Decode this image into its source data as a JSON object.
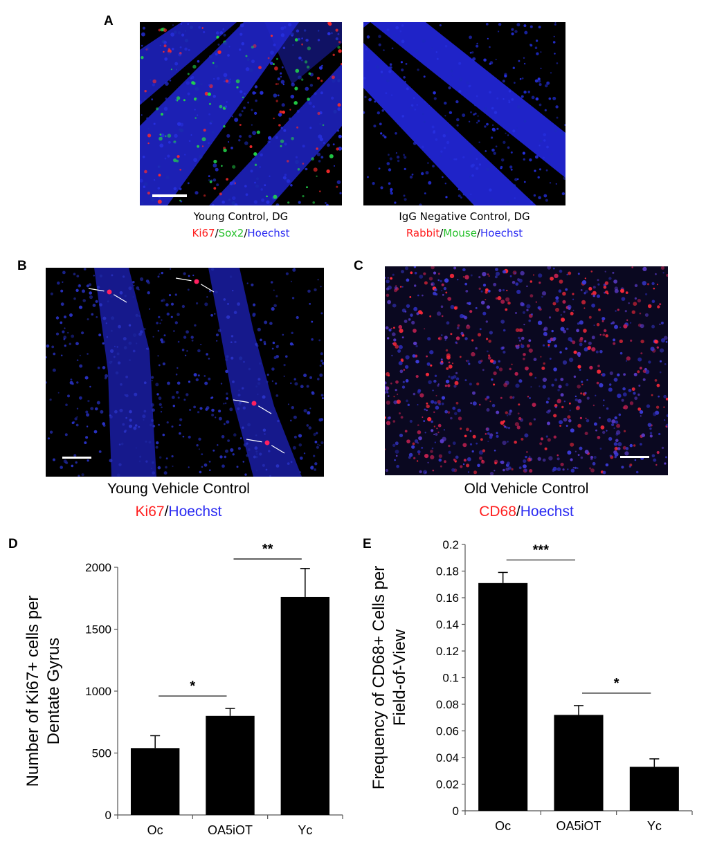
{
  "panels": {
    "A": {
      "letter": "A",
      "left_caption": "Young Control, DG",
      "left_stain": [
        "Ki67",
        "/",
        "Sox2",
        "/",
        "Hoechst"
      ],
      "right_caption": "IgG Negative Control, DG",
      "right_stain": [
        "Rabbit",
        "/",
        "Mouse",
        "/",
        "Hoechst"
      ]
    },
    "B": {
      "letter": "B",
      "caption": "Young Vehicle Control",
      "stain": [
        "Ki67",
        "/",
        "Hoechst"
      ]
    },
    "C": {
      "letter": "C",
      "caption": "Old Vehicle Control",
      "stain": [
        "CD68",
        "/",
        "Hoechst"
      ]
    },
    "D": {
      "letter": "D"
    },
    "E": {
      "letter": "E"
    }
  },
  "colors": {
    "stain_red": "#ff1e1e",
    "stain_green": "#25c02a",
    "stain_blue": "#2a2af2",
    "nuclei_blue": "#1f23c8",
    "bar": "#000000"
  },
  "chart_data": [
    {
      "id": "D",
      "type": "bar",
      "categories": [
        "Oc",
        "OA5iOT",
        "Yc"
      ],
      "values": [
        540,
        800,
        1760
      ],
      "errors": [
        100,
        60,
        230
      ],
      "ylabel": [
        "Number of Ki67+ cells per",
        "Dentate Gyrus"
      ],
      "xlabel": "",
      "ylim": [
        0,
        2000
      ],
      "yticks": [
        0,
        500,
        1000,
        1500,
        2000
      ],
      "ytick_labels": [
        "0",
        "500",
        "1000",
        "1500",
        "2000"
      ],
      "significance": [
        {
          "from": 0,
          "to": 1,
          "label": "*"
        },
        {
          "from": 1,
          "to": 2,
          "label": "**"
        }
      ]
    },
    {
      "id": "E",
      "type": "bar",
      "categories": [
        "Oc",
        "OA5iOT",
        "Yc"
      ],
      "values": [
        0.171,
        0.072,
        0.033
      ],
      "errors": [
        0.008,
        0.007,
        0.006
      ],
      "ylabel": [
        "Frequency of CD68+ Cells per",
        "Field-of-View"
      ],
      "xlabel": "",
      "ylim": [
        0,
        0.2
      ],
      "yticks": [
        0,
        0.02,
        0.04,
        0.06,
        0.08,
        0.1,
        0.12,
        0.14,
        0.16,
        0.18,
        0.2
      ],
      "ytick_labels": [
        "0",
        "0.02",
        "0.04",
        "0.06",
        "0.08",
        "0.1",
        "0.12",
        "0.14",
        "0.16",
        "0.18",
        "0.2"
      ],
      "significance": [
        {
          "from": 0,
          "to": 1,
          "label": "***"
        },
        {
          "from": 1,
          "to": 2,
          "label": "*"
        }
      ]
    }
  ]
}
